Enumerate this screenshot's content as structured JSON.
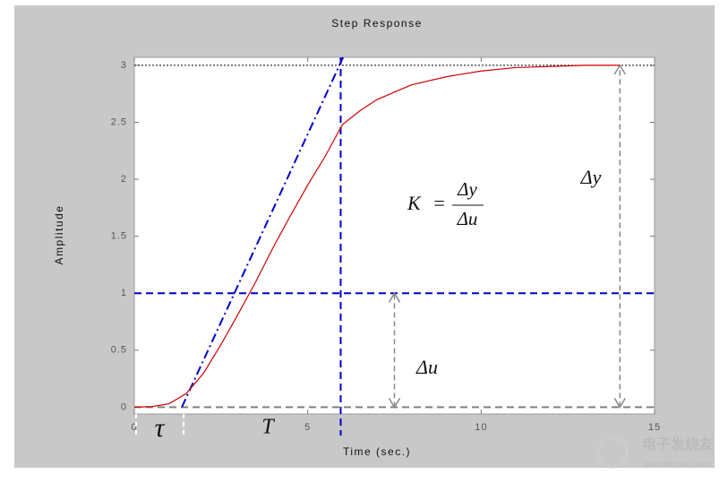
{
  "chart_data": {
    "type": "line",
    "title": "Step Response",
    "xlabel": "Time (sec.)",
    "ylabel": "Amplitude",
    "x": [
      0,
      0.5,
      1,
      1.5,
      2,
      2.5,
      3,
      3.5,
      4,
      4.5,
      5,
      5.5,
      6,
      6.5,
      7,
      8,
      9,
      10,
      11,
      12,
      13,
      14
    ],
    "series": [
      {
        "color": "#d00000",
        "values": [
          0,
          0.005,
          0.03,
          0.12,
          0.3,
          0.55,
          0.82,
          1.1,
          1.4,
          1.68,
          1.95,
          2.2,
          2.48,
          2.6,
          2.7,
          2.83,
          2.9,
          2.95,
          2.98,
          2.99,
          3.0,
          3.0
        ]
      }
    ],
    "xlim": [
      0,
      15
    ],
    "ylim": [
      -0.06,
      3.07
    ],
    "xticks": [
      0,
      5,
      10,
      15
    ],
    "yticks": [
      0,
      0.5,
      1,
      1.5,
      2,
      2.5,
      3
    ],
    "tangent": {
      "x": [
        1.37,
        6.02
      ],
      "y": [
        0,
        3.07
      ],
      "color": "#0000cc"
    },
    "hlines": [
      {
        "y": 1,
        "color": "#0000cc"
      },
      {
        "y": 0,
        "color": "#808080"
      },
      {
        "y": 3,
        "color": "#000000"
      }
    ],
    "vline": {
      "x": 5.95,
      "color": "#0000cc"
    },
    "arrows": [
      {
        "x": 7.5,
        "y": [
          0,
          1
        ]
      },
      {
        "x": 14,
        "y": [
          0,
          3
        ]
      }
    ],
    "annotations": {
      "K": "K",
      "eq": "=",
      "dy_num": "Δy",
      "du_den": "Δu",
      "dy": "Δy",
      "du": "Δu",
      "tau": "τ",
      "T": "T"
    },
    "watermark": {
      "name": "电子发烧友",
      "url": "www.elecfans.com"
    }
  }
}
